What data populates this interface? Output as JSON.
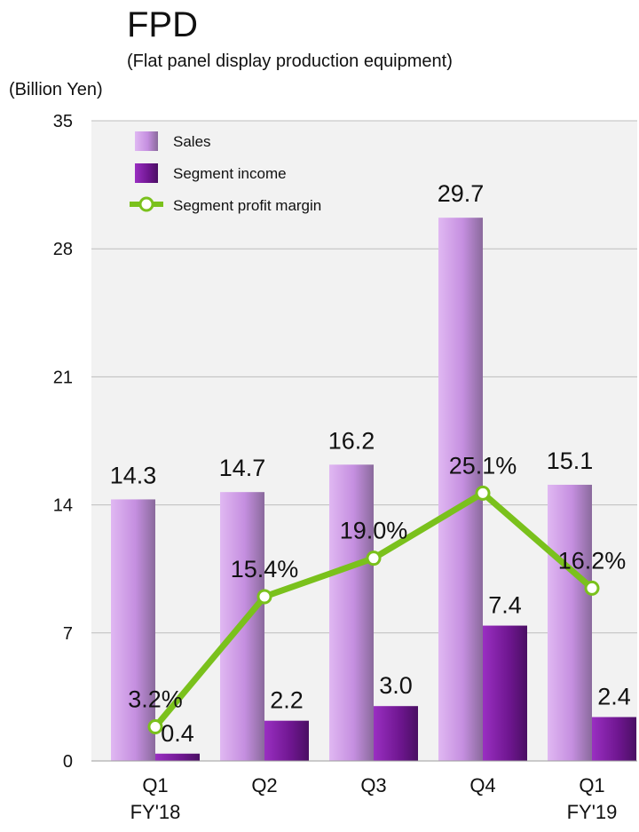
{
  "header": {
    "title": "FPD",
    "subtitle": "(Flat panel display production equipment)",
    "unit": "(Billion Yen)"
  },
  "colors": {
    "sales": "#c58fe0",
    "segment_income": "#7b1d9e",
    "margin_line": "#7ac11c",
    "plot_bg": "#f2f2f2"
  },
  "chart_data": {
    "type": "bar",
    "categories": [
      [
        "Q1",
        "FY'18"
      ],
      [
        "Q2"
      ],
      [
        "Q3"
      ],
      [
        "Q4"
      ],
      [
        "Q1",
        "FY'19"
      ]
    ],
    "ylim": [
      0,
      35
    ],
    "yticks": [
      0,
      7,
      14,
      21,
      28,
      35
    ],
    "grid": true,
    "legend_position": "top-left",
    "series": [
      {
        "name": "Sales",
        "type": "bar",
        "values": [
          14.3,
          14.7,
          16.2,
          29.7,
          15.1
        ],
        "labels": [
          "14.3",
          "14.7",
          "16.2",
          "29.7",
          "15.1"
        ]
      },
      {
        "name": "Segment income",
        "type": "bar",
        "values": [
          0.4,
          2.2,
          3.0,
          7.4,
          2.4
        ],
        "labels": [
          "0.4",
          "2.2",
          "3.0",
          "7.4",
          "2.4"
        ]
      },
      {
        "name": "Segment profit margin",
        "type": "line",
        "values": [
          3.2,
          15.4,
          19.0,
          25.1,
          16.2
        ],
        "labels": [
          "3.2%",
          "15.4%",
          "19.0%",
          "25.1%",
          "16.2%"
        ]
      }
    ]
  }
}
